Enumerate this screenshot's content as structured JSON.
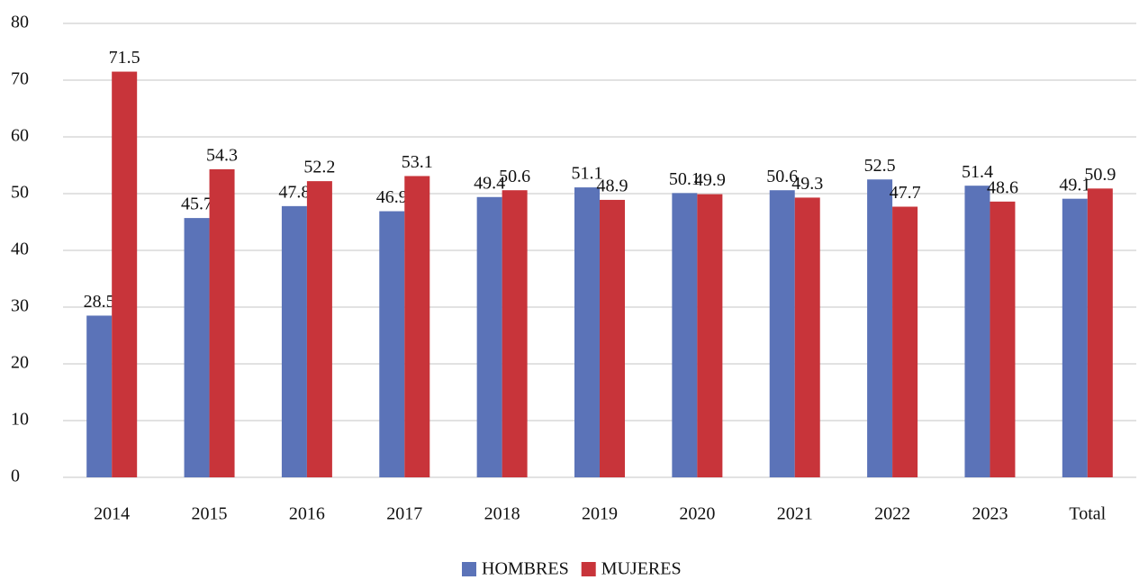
{
  "chart_data": {
    "type": "bar",
    "categories": [
      "2014",
      "2015",
      "2016",
      "2017",
      "2018",
      "2019",
      "2020",
      "2021",
      "2022",
      "2023",
      "Total"
    ],
    "series": [
      {
        "name": "HOMBRES",
        "color": "#5b73b8",
        "values": [
          28.5,
          45.7,
          47.8,
          46.9,
          49.4,
          51.1,
          50.1,
          50.6,
          52.5,
          51.4,
          49.1
        ]
      },
      {
        "name": "MUJERES",
        "color": "#c8343a",
        "values": [
          71.5,
          54.3,
          52.2,
          53.1,
          50.6,
          48.9,
          49.9,
          49.3,
          47.7,
          48.6,
          50.9
        ]
      }
    ],
    "ylim": [
      0,
      80
    ],
    "yticks": [
      0,
      10,
      20,
      30,
      40,
      50,
      60,
      70,
      80
    ],
    "grid": true,
    "legend": "bottom"
  }
}
